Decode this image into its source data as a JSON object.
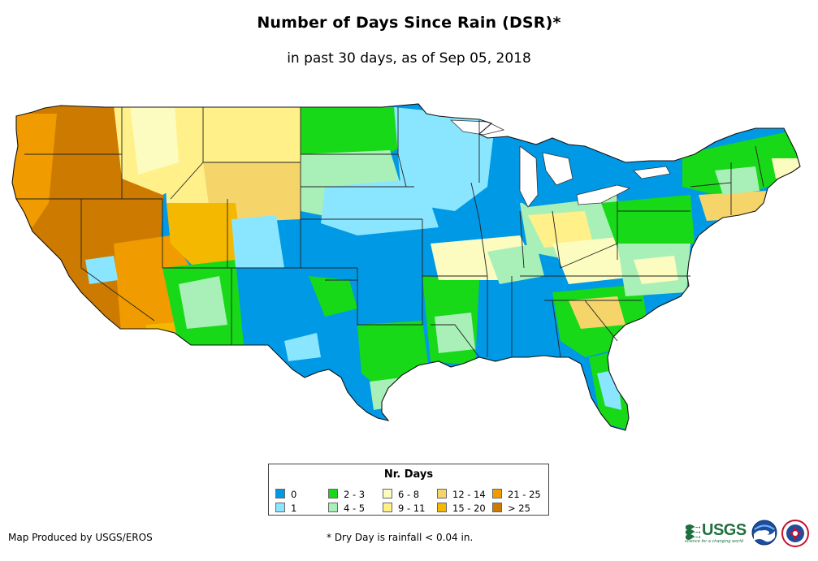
{
  "title": "Number of Days Since Rain (DSR)*",
  "subtitle": "in past 30 days, as of Sep 05, 2018",
  "legend": {
    "title": "Nr. Days",
    "items": [
      {
        "label": "0",
        "color": "#0099e6"
      },
      {
        "label": "1",
        "color": "#8ae6ff"
      },
      {
        "label": "2 - 3",
        "color": "#18d918"
      },
      {
        "label": "4 - 5",
        "color": "#a8f0b8"
      },
      {
        "label": "6 - 8",
        "color": "#fcfcc0"
      },
      {
        "label": "9 - 11",
        "color": "#fff08a"
      },
      {
        "label": "12 - 14",
        "color": "#f5d56a"
      },
      {
        "label": "15 - 20",
        "color": "#f5b800"
      },
      {
        "label": "21 - 25",
        "color": "#f09c00"
      },
      {
        "label": "> 25",
        "color": "#cc7a00"
      }
    ]
  },
  "footer": {
    "credit": "Map Produced by USGS/EROS",
    "footnote": "* Dry Day is rainfall < 0.04 in."
  },
  "logos": {
    "usgs": "USGS",
    "usgs_tagline": "science for a changing world",
    "noaa_icon": "noaa-logo",
    "nws_icon": "nws-logo"
  }
}
